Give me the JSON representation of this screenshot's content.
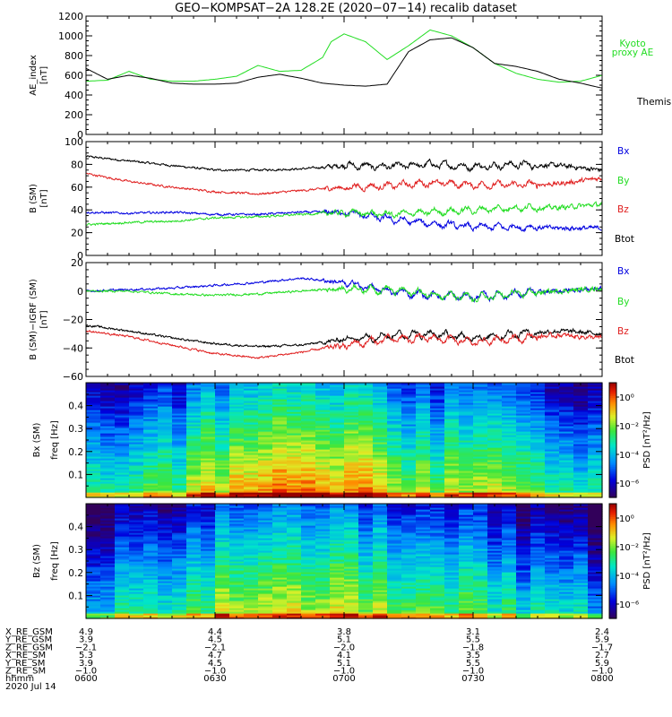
{
  "title": "GEO−KOMPSAT−2A 128.2E (2020−07−14) recalib dataset",
  "colors": {
    "black": "#000000",
    "green": "#22dd22",
    "red": "#e02020",
    "blue": "#0000e0"
  },
  "chart_data": [
    {
      "type": "line",
      "panel": "ae",
      "ylabel": [
        "AE_index",
        "[nT]"
      ],
      "ylim": [
        0,
        1200
      ],
      "yticks": [
        0,
        200,
        400,
        600,
        800,
        1000,
        1200
      ],
      "xlim": [
        0,
        120
      ],
      "x_unit": "minutes after 0600 UT",
      "legend": [
        {
          "text": "Kyoto",
          "color": "green"
        },
        {
          "text": "proxy AE",
          "color": "green"
        },
        {
          "text": "Themis AE",
          "color": "black"
        }
      ],
      "series": [
        {
          "name": "Kyoto proxy AE",
          "color": "green",
          "x": [
            0,
            5,
            10,
            15,
            20,
            25,
            30,
            35,
            40,
            45,
            50,
            55,
            57,
            60,
            65,
            70,
            75,
            80,
            85,
            90,
            95,
            100,
            105,
            110,
            115,
            120
          ],
          "y": [
            540,
            550,
            640,
            560,
            540,
            540,
            560,
            590,
            700,
            640,
            650,
            780,
            940,
            1020,
            940,
            760,
            900,
            1060,
            1000,
            880,
            720,
            620,
            560,
            530,
            540,
            600
          ]
        },
        {
          "name": "Themis AE",
          "color": "black",
          "x": [
            0,
            5,
            10,
            15,
            20,
            25,
            30,
            35,
            40,
            45,
            50,
            55,
            60,
            65,
            70,
            75,
            80,
            85,
            90,
            95,
            100,
            105,
            110,
            115,
            120
          ],
          "y": [
            670,
            560,
            600,
            570,
            520,
            510,
            510,
            520,
            580,
            610,
            570,
            520,
            500,
            490,
            510,
            840,
            960,
            980,
            880,
            720,
            690,
            640,
            560,
            520,
            470
          ]
        }
      ]
    },
    {
      "type": "line",
      "panel": "b_sm",
      "ylabel": [
        "B (SM)",
        "[nT]"
      ],
      "ylim": [
        0,
        100
      ],
      "yticks": [
        0,
        20,
        40,
        60,
        80,
        100
      ],
      "xlim": [
        0,
        120
      ],
      "legend": [
        {
          "text": "Bx",
          "color": "blue"
        },
        {
          "text": "By",
          "color": "green"
        },
        {
          "text": "Bz",
          "color": "red"
        },
        {
          "text": "Btot",
          "color": "black"
        }
      ],
      "series": [
        {
          "name": "Btot",
          "color": "black",
          "x": [
            0,
            10,
            20,
            30,
            40,
            50,
            60,
            70,
            80,
            90,
            100,
            110,
            120
          ],
          "y": [
            87,
            83,
            79,
            75,
            75,
            76,
            79,
            78,
            80,
            78,
            80,
            79,
            75
          ]
        },
        {
          "name": "Bz",
          "color": "red",
          "x": [
            0,
            10,
            20,
            30,
            40,
            50,
            60,
            70,
            80,
            90,
            100,
            110,
            120
          ],
          "y": [
            72,
            65,
            60,
            56,
            54,
            57,
            60,
            61,
            64,
            62,
            62,
            63,
            68
          ]
        },
        {
          "name": "Bx",
          "color": "blue",
          "x": [
            0,
            10,
            20,
            30,
            40,
            50,
            60,
            70,
            80,
            90,
            100,
            110,
            120
          ],
          "y": [
            38,
            37,
            38,
            36,
            36,
            38,
            38,
            32,
            28,
            25,
            25,
            24,
            24
          ]
        },
        {
          "name": "By",
          "color": "green",
          "x": [
            0,
            10,
            20,
            30,
            40,
            50,
            60,
            70,
            80,
            90,
            100,
            110,
            120
          ],
          "y": [
            27,
            29,
            30,
            33,
            34,
            36,
            38,
            36,
            38,
            40,
            42,
            42,
            45
          ]
        }
      ]
    },
    {
      "type": "line",
      "panel": "db",
      "ylabel": [
        "B (SM)−IGRF (SM)",
        "[nT]"
      ],
      "ylim": [
        -60,
        20
      ],
      "yticks": [
        -60,
        -40,
        -20,
        0,
        20
      ],
      "xlim": [
        0,
        120
      ],
      "legend": [
        {
          "text": "Bx",
          "color": "blue"
        },
        {
          "text": "By",
          "color": "green"
        },
        {
          "text": "Bz",
          "color": "red"
        },
        {
          "text": "Btot",
          "color": "black"
        }
      ],
      "series": [
        {
          "name": "Bx",
          "color": "blue",
          "x": [
            0,
            10,
            20,
            30,
            40,
            50,
            60,
            70,
            80,
            90,
            100,
            110,
            120
          ],
          "y": [
            0,
            1,
            2,
            4,
            6,
            9,
            6,
            0,
            -3,
            -4,
            -2,
            0,
            2
          ]
        },
        {
          "name": "By",
          "color": "green",
          "x": [
            0,
            10,
            20,
            30,
            40,
            50,
            60,
            70,
            80,
            90,
            100,
            110,
            120
          ],
          "y": [
            0,
            0,
            -2,
            -3,
            -2,
            0,
            2,
            1,
            -2,
            -5,
            -2,
            0,
            2
          ]
        },
        {
          "name": "Btot",
          "color": "black",
          "x": [
            0,
            10,
            20,
            30,
            40,
            50,
            60,
            70,
            80,
            90,
            100,
            110,
            120
          ],
          "y": [
            -24,
            -28,
            -33,
            -37,
            -39,
            -38,
            -34,
            -31,
            -30,
            -33,
            -30,
            -28,
            -30
          ]
        },
        {
          "name": "Bz",
          "color": "red",
          "x": [
            0,
            10,
            20,
            30,
            40,
            50,
            60,
            70,
            80,
            90,
            100,
            110,
            120
          ],
          "y": [
            -28,
            -32,
            -38,
            -44,
            -47,
            -43,
            -38,
            -34,
            -33,
            -36,
            -33,
            -31,
            -33
          ]
        }
      ]
    },
    {
      "type": "heatmap",
      "panel": "bx_psd",
      "ylabel": [
        "Bx (SM)",
        "freq [Hz]"
      ],
      "ylim": [
        0,
        0.5
      ],
      "yticks": [
        0.1,
        0.2,
        0.3,
        0.4
      ],
      "xlim": [
        0,
        120
      ],
      "colorbar": {
        "label": "PSD [nT²/Hz]",
        "ticks": [
          "10⁰",
          "10⁻²",
          "10⁻⁴",
          "10⁻⁶"
        ],
        "log_range": [
          -7,
          1
        ]
      },
      "activity_x": [
        0,
        10,
        20,
        30,
        40,
        50,
        60,
        70,
        80,
        90,
        100,
        110,
        120
      ],
      "activity_y": [
        0.55,
        0.5,
        0.6,
        0.75,
        0.85,
        0.8,
        0.85,
        0.75,
        0.65,
        0.75,
        0.6,
        0.55,
        0.5
      ]
    },
    {
      "type": "heatmap",
      "panel": "bz_psd",
      "ylabel": [
        "Bz (SM)",
        "freq [Hz]"
      ],
      "ylim": [
        0,
        0.5
      ],
      "yticks": [
        0.1,
        0.2,
        0.3,
        0.4
      ],
      "xlim": [
        0,
        120
      ],
      "colorbar": {
        "label": "PSD [nT²/Hz]",
        "ticks": [
          "10⁰",
          "10⁻²",
          "10⁻⁴",
          "10⁻⁶"
        ],
        "log_range": [
          -7,
          1
        ]
      },
      "activity_x": [
        0,
        10,
        20,
        30,
        40,
        50,
        60,
        70,
        80,
        90,
        100,
        110,
        120
      ],
      "activity_y": [
        0.45,
        0.5,
        0.55,
        0.65,
        0.75,
        0.7,
        0.75,
        0.65,
        0.55,
        0.65,
        0.5,
        0.45,
        0.4
      ]
    }
  ],
  "ephemeris": {
    "labels": [
      "X_RE_GSM",
      "Y_RE_GSM",
      "Z_RE_GSM",
      "X_RE_SM",
      "Y_RE_SM",
      "Z_RE_SM",
      "hhmm"
    ],
    "date": "2020 Jul 14",
    "x_positions_min": [
      0,
      30,
      60,
      90,
      120
    ],
    "columns": [
      [
        "4.9",
        "3.9",
        "−2.1",
        "5.3",
        "3.9",
        "−1.0",
        "0600"
      ],
      [
        "4.4",
        "4.5",
        "−2.1",
        "4.7",
        "4.5",
        "−1.0",
        "0630"
      ],
      [
        "3.8",
        "5.1",
        "−2.0",
        "4.1",
        "5.1",
        "−1.0",
        "0700"
      ],
      [
        "3.1",
        "5.5",
        "−1.8",
        "3.5",
        "5.5",
        "−1.0",
        "0730"
      ],
      [
        "2.4",
        "5.9",
        "−1.7",
        "2.7",
        "5.9",
        "−1.0",
        "0800"
      ]
    ]
  }
}
